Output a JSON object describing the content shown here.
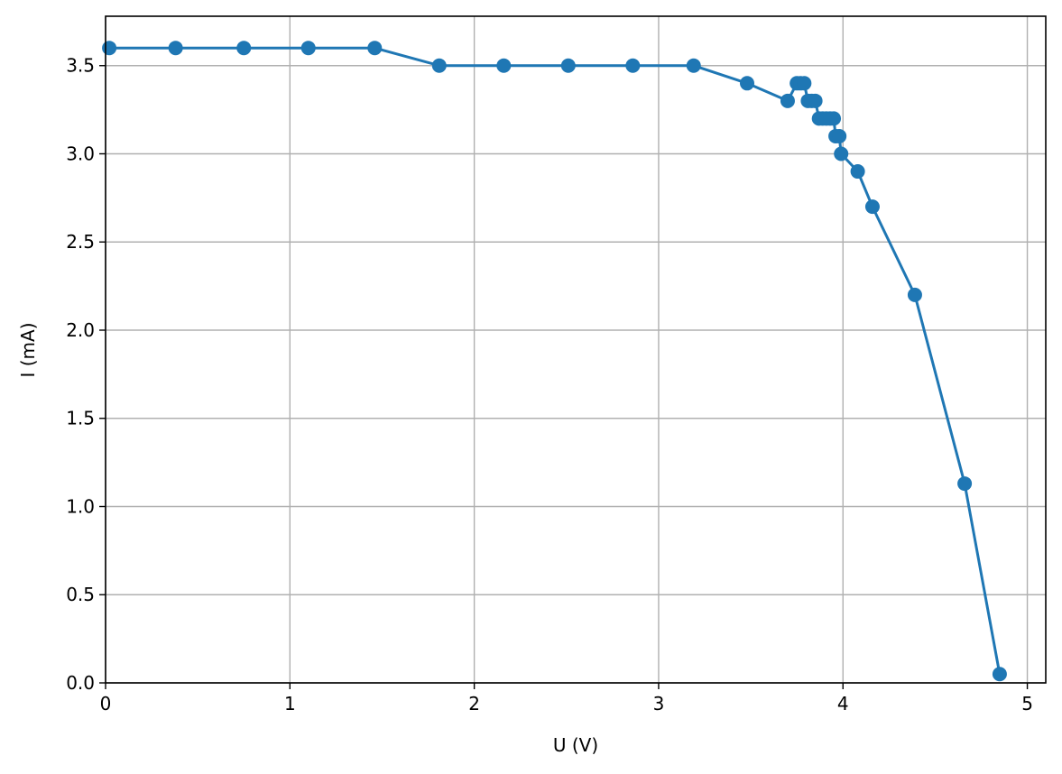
{
  "chart_data": {
    "type": "line",
    "title": "",
    "xlabel": "U (V)",
    "ylabel": "I (mA)",
    "xlim": [
      0,
      5.1
    ],
    "ylim": [
      0,
      3.78
    ],
    "x_ticks": [
      0,
      1,
      2,
      3,
      4,
      5
    ],
    "x_tick_labels": [
      "0",
      "1",
      "2",
      "3",
      "4",
      "5"
    ],
    "y_ticks": [
      0,
      0.5,
      1,
      1.5,
      2,
      2.5,
      3,
      3.5
    ],
    "y_tick_labels": [
      "0.0",
      "0.5",
      "1.0",
      "1.5",
      "2.0",
      "2.5",
      "3.0",
      "3.5"
    ],
    "grid": true,
    "legend": "none",
    "series": [
      {
        "color": "#1f77b4",
        "marker": "circle",
        "x": [
          0.02,
          0.38,
          0.75,
          1.1,
          1.46,
          1.81,
          2.16,
          2.51,
          2.86,
          3.19,
          3.48,
          3.7,
          3.75,
          3.77,
          3.79,
          3.81,
          3.83,
          3.85,
          3.87,
          3.89,
          3.91,
          3.93,
          3.95,
          3.96,
          3.98,
          3.99,
          4.08,
          4.16,
          4.39,
          4.66,
          4.85
        ],
        "y": [
          3.6,
          3.6,
          3.6,
          3.6,
          3.6,
          3.5,
          3.5,
          3.5,
          3.5,
          3.5,
          3.4,
          3.3,
          3.4,
          3.4,
          3.4,
          3.3,
          3.3,
          3.3,
          3.2,
          3.2,
          3.2,
          3.2,
          3.2,
          3.1,
          3.1,
          3.0,
          2.9,
          2.7,
          2.2,
          1.13,
          0.05
        ]
      }
    ]
  }
}
